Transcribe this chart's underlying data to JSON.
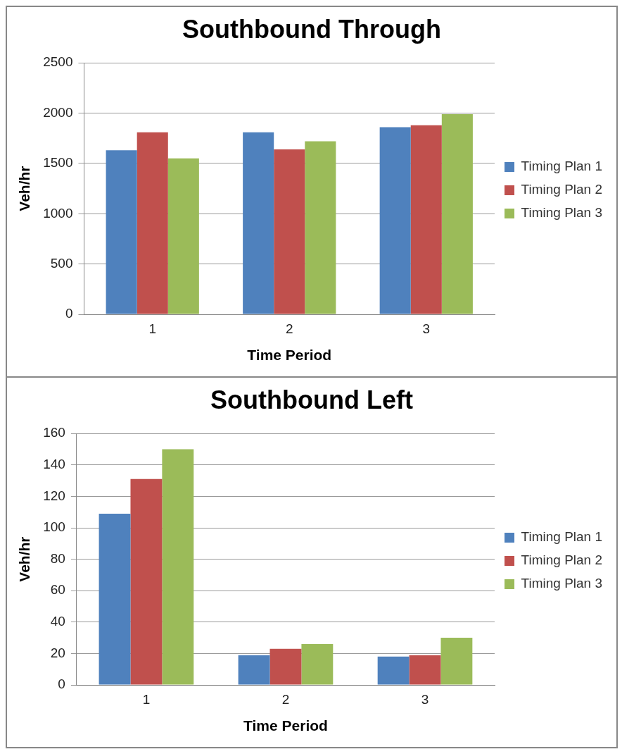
{
  "chart_data": [
    {
      "type": "bar",
      "title": "Southbound Through",
      "xlabel": "Time Period",
      "ylabel": "Veh/hr",
      "categories": [
        "1",
        "2",
        "3"
      ],
      "series": [
        {
          "name": "Timing Plan 1",
          "color": "#4f81bd",
          "values": [
            1630,
            1810,
            1860
          ]
        },
        {
          "name": "Timing Plan 2",
          "color": "#c0504d",
          "values": [
            1810,
            1640,
            1880
          ]
        },
        {
          "name": "Timing Plan 3",
          "color": "#9bbb59",
          "values": [
            1550,
            1720,
            1990
          ]
        }
      ],
      "ylim": [
        0,
        2500
      ],
      "yticks": [
        0,
        500,
        1000,
        1500,
        2000,
        2500
      ],
      "grid": "y",
      "legend": "right"
    },
    {
      "type": "bar",
      "title": "Southbound Left",
      "xlabel": "Time Period",
      "ylabel": "Veh/hr",
      "categories": [
        "1",
        "2",
        "3"
      ],
      "series": [
        {
          "name": "Timing Plan 1",
          "color": "#4f81bd",
          "values": [
            109,
            19,
            18
          ]
        },
        {
          "name": "Timing Plan 2",
          "color": "#c0504d",
          "values": [
            131,
            23,
            19
          ]
        },
        {
          "name": "Timing Plan 3",
          "color": "#9bbb59",
          "values": [
            150,
            26,
            30
          ]
        }
      ],
      "ylim": [
        0,
        160
      ],
      "yticks": [
        0,
        20,
        40,
        60,
        80,
        100,
        120,
        140,
        160
      ],
      "grid": "y",
      "legend": "right"
    }
  ]
}
